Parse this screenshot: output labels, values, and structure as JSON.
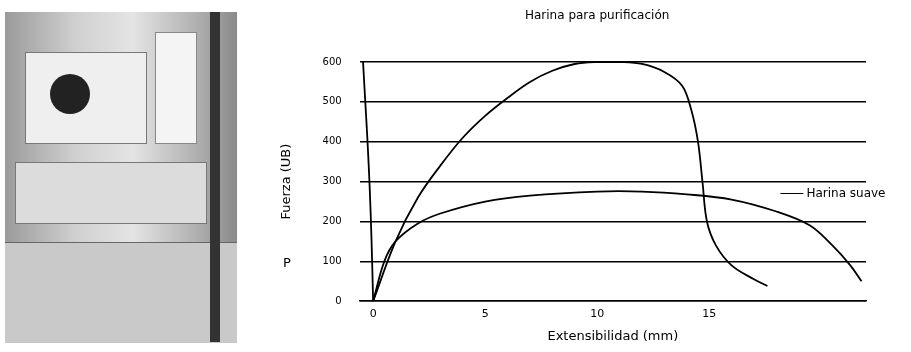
{
  "chart_data": {
    "type": "line",
    "x_label": "Extensibilidad (mm)",
    "y_label": "Fuerza (UB)",
    "annotations": [
      "P"
    ],
    "xlim": [
      -0.6,
      22
    ],
    "xticks": [
      0,
      5,
      10,
      15
    ],
    "ylim": [
      0,
      600
    ],
    "yticks": [
      0,
      100,
      200,
      300,
      400,
      500,
      600
    ],
    "grid": true,
    "marker": "none",
    "series": [
      {
        "name": "Harina para purificación",
        "color": "#000000",
        "x": [
          0,
          1,
          2,
          3,
          4,
          5,
          6,
          7,
          8,
          9,
          10,
          11,
          12,
          13,
          13.8,
          14.2,
          14.5,
          14.7,
          14.9,
          15.3,
          16,
          17,
          17.6
        ],
        "values": [
          0,
          150,
          260,
          340,
          410,
          465,
          510,
          550,
          578,
          595,
          600,
          600,
          595,
          575,
          540,
          480,
          400,
          300,
          200,
          140,
          90,
          55,
          38
        ]
      },
      {
        "name": "Harina suave",
        "color": "#000000",
        "x": [
          0,
          0.5,
          1,
          2,
          3,
          5,
          7,
          10,
          12,
          14,
          16,
          18,
          19.5,
          20.5,
          21.3,
          21.8
        ],
        "values": [
          0,
          100,
          150,
          195,
          220,
          250,
          265,
          275,
          275,
          268,
          255,
          225,
          190,
          140,
          90,
          50
        ]
      },
      {
        "color": "#000000",
        "x": [
          -0.45,
          -0.35,
          -0.25,
          -0.15,
          -0.07,
          0
        ],
        "values": [
          600,
          500,
          400,
          280,
          150,
          0
        ]
      }
    ]
  }
}
